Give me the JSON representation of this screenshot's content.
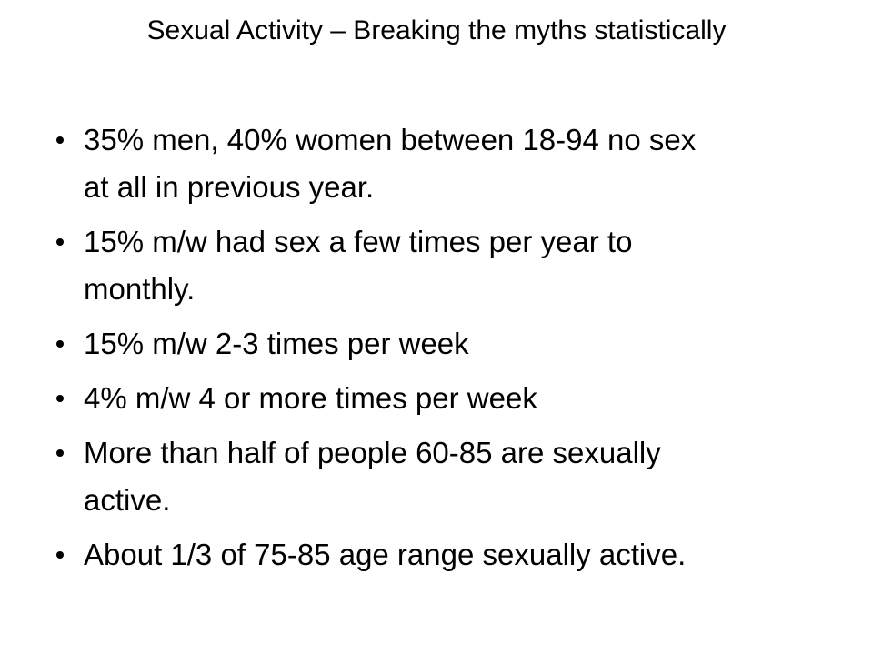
{
  "title": "Sexual Activity – Breaking the myths statistically",
  "bullets": [
    [
      "35% men, 40% women between 18-94 no sex",
      "at all in previous year."
    ],
    [
      "15% m/w had sex a few times per year to",
      "monthly."
    ],
    [
      "15% m/w 2-3 times per week"
    ],
    [
      "4% m/w 4 or more times per week"
    ],
    [
      "More than half of people 60-85 are sexually",
      "active."
    ],
    [
      "About 1/3 of 75-85 age range sexually active."
    ]
  ]
}
